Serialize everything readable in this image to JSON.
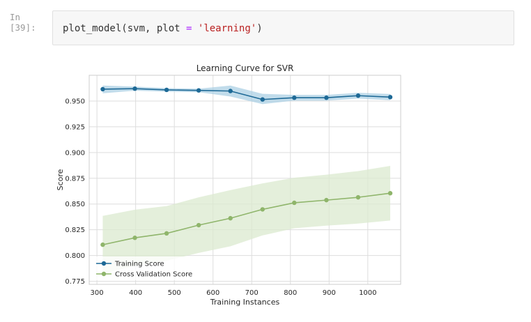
{
  "cell": {
    "prompt": "In [39]:",
    "code_fn": "plot_model",
    "code_open": "(svm, plot ",
    "code_eq": "=",
    "code_space": " ",
    "code_str": "'learning'",
    "code_close": ")"
  },
  "chart_data": {
    "type": "line",
    "title": "Learning Curve for SVR",
    "xlabel": "Training Instances",
    "ylabel": "Score",
    "xlim": [
      280,
      1085
    ],
    "ylim": [
      0.772,
      0.975
    ],
    "xticks": [
      300,
      400,
      500,
      600,
      700,
      800,
      900,
      1000
    ],
    "yticks": [
      0.775,
      0.8,
      0.825,
      0.85,
      0.875,
      0.9,
      0.925,
      0.95
    ],
    "ytick_labels": [
      "0.775",
      "0.800",
      "0.825",
      "0.850",
      "0.875",
      "0.900",
      "0.925",
      "0.950"
    ],
    "grid": true,
    "legend_position": "lower-left",
    "series": [
      {
        "name": "Training Score",
        "color": "#1d6996",
        "band_color": "#a6cde2",
        "x": [
          315,
          398,
          480,
          563,
          645,
          728,
          810,
          893,
          975,
          1058
        ],
        "y": [
          0.9615,
          0.962,
          0.9608,
          0.9603,
          0.9597,
          0.9515,
          0.9532,
          0.9532,
          0.9552,
          0.9538
        ],
        "upper": [
          0.965,
          0.964,
          0.9625,
          0.962,
          0.965,
          0.957,
          0.956,
          0.956,
          0.958,
          0.9568
        ],
        "lower": [
          0.9575,
          0.96,
          0.9591,
          0.9586,
          0.9544,
          0.947,
          0.9504,
          0.9504,
          0.9524,
          0.9508
        ]
      },
      {
        "name": "Cross Validation Score",
        "color": "#8fb56b",
        "band_color": "#dbe9cf",
        "x": [
          315,
          398,
          480,
          563,
          645,
          728,
          810,
          893,
          975,
          1058
        ],
        "y": [
          0.8105,
          0.8172,
          0.8215,
          0.8295,
          0.8362,
          0.8448,
          0.8512,
          0.8538,
          0.8565,
          0.8605
        ],
        "upper": [
          0.8385,
          0.8445,
          0.848,
          0.8565,
          0.8635,
          0.87,
          0.8755,
          0.8785,
          0.882,
          0.887
        ],
        "lower": [
          0.7825,
          0.79,
          0.795,
          0.8025,
          0.809,
          0.8195,
          0.8265,
          0.829,
          0.831,
          0.834
        ]
      }
    ]
  }
}
